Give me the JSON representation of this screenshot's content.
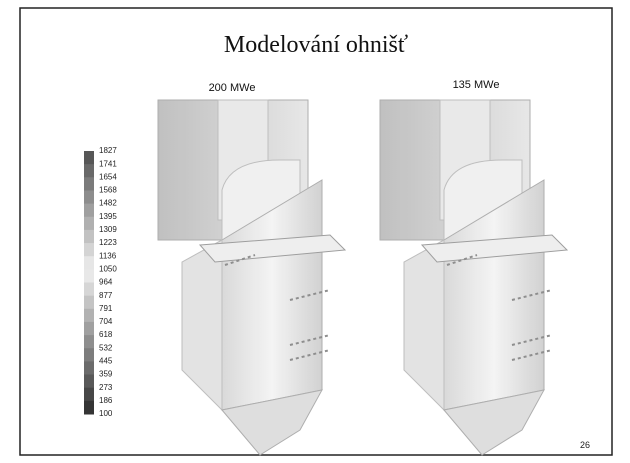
{
  "title": "Modelování ohnišť",
  "panels": [
    {
      "label": "200 MWe"
    },
    {
      "label": "135 MWe"
    }
  ],
  "colorbar": {
    "ticks": [
      1827,
      1741,
      1654,
      1568,
      1482,
      1395,
      1309,
      1223,
      1136,
      1050,
      964,
      877,
      791,
      704,
      618,
      532,
      445,
      359,
      273,
      186,
      100
    ]
  },
  "page_number": "26"
}
